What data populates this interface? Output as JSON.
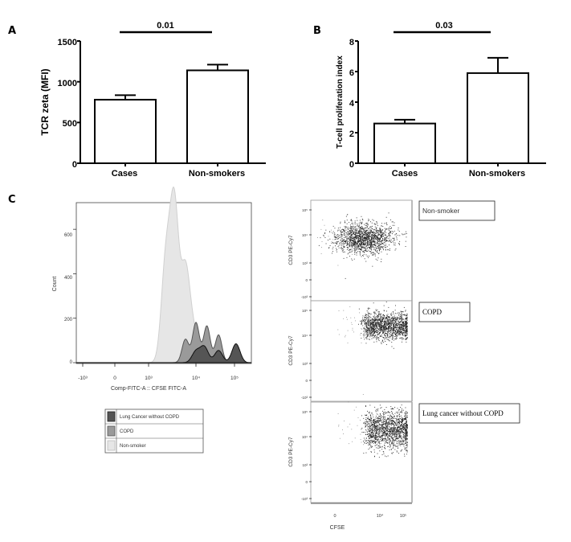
{
  "figure": {
    "panels": [
      "A",
      "B",
      "C"
    ]
  },
  "chart_data": [
    {
      "panel": "A",
      "type": "bar",
      "categories": [
        "Cases",
        "Non-smokers"
      ],
      "values": [
        780,
        1140
      ],
      "errors": [
        55,
        70
      ],
      "ylabel": "TCR zeta (MFI)",
      "ylim": [
        0,
        1500
      ],
      "yticks": [
        0,
        500,
        1000,
        1500
      ],
      "annotation": "0.01",
      "grid": false
    },
    {
      "panel": "B",
      "type": "bar",
      "categories": [
        "Cases",
        "Non-smokers"
      ],
      "values": [
        2.6,
        5.9
      ],
      "errors": [
        0.25,
        1.0
      ],
      "ylabel": "T-cell proliferation index",
      "ylim": [
        0,
        8
      ],
      "yticks": [
        0,
        2,
        4,
        6,
        8
      ],
      "annotation": "0.03",
      "grid": false
    },
    {
      "panel": "C",
      "type": "area",
      "xlabel": "Comp-FITC-A :: CFSE FITC-A",
      "ylabel": "Count",
      "yticks": [
        "0",
        "200",
        "400",
        "600"
      ],
      "xticks": [
        "-10³",
        "0",
        "10³",
        "10⁴",
        "10⁵"
      ],
      "ylim": [
        0,
        720
      ],
      "series": [
        {
          "name": "Non-smoker",
          "peaks": [
            {
              "x": "2.3e3",
              "y": 440
            },
            {
              "x": "3.5e3",
              "y": 700
            },
            {
              "x": "6e3",
              "y": 410
            },
            {
              "x": "9e3",
              "y": 125
            }
          ]
        },
        {
          "name": "COPD",
          "peaks": [
            {
              "x": "6e3",
              "y": 105
            },
            {
              "x": "1e4",
              "y": 180
            },
            {
              "x": "1.7e4",
              "y": 165
            },
            {
              "x": "3e4",
              "y": 125
            },
            {
              "x": "7e4",
              "y": 85
            }
          ]
        },
        {
          "name": "Lung Cancer without COPD",
          "peaks": [
            {
              "x": "1e4",
              "y": 50
            },
            {
              "x": "1.5e4",
              "y": 70
            },
            {
              "x": "3e4",
              "y": 55
            },
            {
              "x": "7e4",
              "y": 85
            }
          ]
        }
      ],
      "legend": {
        "placement": "bottom",
        "items": [
          {
            "label": "Lung Cancer without COPD",
            "color": "#555555"
          },
          {
            "label": "COPD",
            "color": "#9a9a9a"
          },
          {
            "label": "Non-smoker",
            "color": "#e6e6e6"
          }
        ]
      }
    },
    {
      "panel": "C-scatter",
      "type": "scatter",
      "xlabel": "CFSE",
      "ylabel": "CD3 PE-Cy7",
      "yticks": [
        "10⁵",
        "10⁴",
        "10³",
        "0",
        "-10³"
      ],
      "xticks": [
        "0",
        "10⁴",
        "10⁵"
      ],
      "subplots": [
        {
          "label": "Non-smoker",
          "cluster_center": {
            "cfse": "5e3",
            "cd3": "1.3e4"
          }
        },
        {
          "label": "COPD",
          "cluster_center": {
            "cfse": "3e4",
            "cd3": "2e4"
          }
        },
        {
          "label": "Lung cancer without COPD",
          "cluster_center": {
            "cfse": "3e4",
            "cd3": "2e4"
          }
        }
      ]
    }
  ]
}
